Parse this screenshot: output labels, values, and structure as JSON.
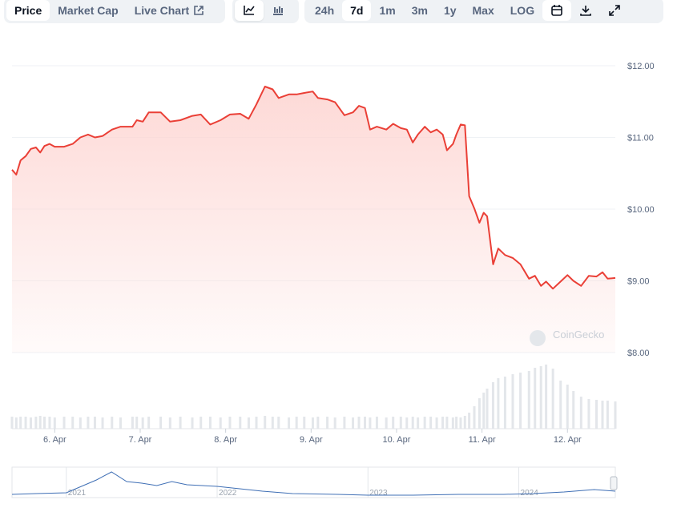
{
  "toolbar": {
    "tabs": [
      "Price",
      "Market Cap",
      "Live Chart"
    ],
    "ranges": [
      "24h",
      "7d",
      "1m",
      "3m",
      "1y",
      "Max",
      "LOG"
    ]
  },
  "watermark": "CoinGecko",
  "chart_data": [
    {
      "type": "line",
      "color": "#ea3f36",
      "fill": "#fdd5d2",
      "grid": true,
      "x": [
        5.5,
        5.55,
        5.6,
        5.66,
        5.72,
        5.78,
        5.83,
        5.88,
        5.94,
        6.0,
        6.11,
        6.21,
        6.3,
        6.39,
        6.47,
        6.56,
        6.67,
        6.77,
        6.91,
        6.96,
        7.03,
        7.1,
        7.24,
        7.35,
        7.47,
        7.61,
        7.71,
        7.82,
        7.94,
        8.05,
        8.17,
        8.27,
        8.36,
        8.46,
        8.55,
        8.62,
        8.74,
        8.83,
        8.92,
        9.02,
        9.08,
        9.19,
        9.28,
        9.39,
        9.49,
        9.56,
        9.63,
        9.69,
        9.77,
        9.88,
        9.96,
        10.05,
        10.12,
        10.19,
        10.25,
        10.33,
        10.4,
        10.47,
        10.54,
        10.59,
        10.66,
        10.7,
        10.75,
        10.8,
        10.85,
        10.91,
        10.97,
        11.02,
        11.06,
        11.13,
        11.19,
        11.27,
        11.36,
        11.45,
        11.55,
        11.62,
        11.69,
        11.75,
        11.83,
        11.92,
        12.0,
        12.07,
        12.16,
        12.25,
        12.34,
        12.41,
        12.47,
        12.56
      ],
      "values": [
        10.55,
        10.48,
        10.68,
        10.74,
        10.84,
        10.86,
        10.79,
        10.88,
        10.91,
        10.87,
        10.87,
        10.91,
        11.0,
        11.04,
        11.0,
        11.02,
        11.11,
        11.15,
        11.15,
        11.24,
        11.22,
        11.35,
        11.35,
        11.22,
        11.24,
        11.3,
        11.32,
        11.18,
        11.24,
        11.32,
        11.33,
        11.26,
        11.46,
        11.71,
        11.67,
        11.55,
        11.6,
        11.6,
        11.62,
        11.64,
        11.55,
        11.53,
        11.49,
        11.31,
        11.35,
        11.44,
        11.41,
        11.11,
        11.15,
        11.11,
        11.19,
        11.13,
        11.11,
        10.93,
        11.04,
        11.15,
        11.07,
        11.11,
        11.04,
        10.82,
        10.91,
        11.04,
        11.18,
        11.17,
        10.18,
        10.01,
        9.81,
        9.95,
        9.9,
        9.23,
        9.45,
        9.36,
        9.32,
        9.23,
        9.03,
        9.07,
        8.93,
        8.99,
        8.89,
        8.99,
        9.08,
        9.0,
        8.93,
        9.07,
        9.06,
        9.12,
        9.03,
        9.04
      ],
      "volume": [
        15,
        14,
        15,
        15,
        14,
        15,
        16,
        15,
        15,
        14,
        15,
        15,
        14,
        15,
        15,
        14,
        15,
        14,
        15,
        15,
        14,
        15,
        15,
        14,
        15,
        14,
        15,
        15,
        14,
        15,
        15,
        14,
        15,
        16,
        15,
        15,
        14,
        15,
        15,
        14,
        15,
        15,
        14,
        15,
        14,
        15,
        15,
        14,
        15,
        14,
        15,
        15,
        14,
        15,
        14,
        15,
        15,
        14,
        15,
        15,
        14,
        15,
        14,
        16,
        20,
        28,
        38,
        45,
        50,
        58,
        63,
        65,
        68,
        70,
        72,
        76,
        78,
        80,
        75,
        60,
        55,
        47,
        40,
        37,
        36,
        35,
        35,
        34
      ],
      "xlim": [
        5.5,
        12.56
      ],
      "xticks": [
        {
          "value": 6,
          "label": "6. Apr"
        },
        {
          "value": 7,
          "label": "7. Apr"
        },
        {
          "value": 8,
          "label": "8. Apr"
        },
        {
          "value": 9,
          "label": "9. Apr"
        },
        {
          "value": 10,
          "label": "10. Apr"
        },
        {
          "value": 11,
          "label": "11. Apr"
        },
        {
          "value": 12,
          "label": "12. Apr"
        }
      ],
      "ylim": [
        8,
        12
      ],
      "yticks": [
        {
          "value": 12,
          "label": "$12.00"
        },
        {
          "value": 11,
          "label": "$11.00"
        },
        {
          "value": 10,
          "label": "$10.00"
        },
        {
          "value": 9,
          "label": "$9.00"
        },
        {
          "value": 8,
          "label": "$8.00"
        }
      ]
    },
    {
      "type": "navigator",
      "color": "#3f6fb5",
      "x": [
        2020.64,
        2020.8,
        2021.0,
        2021.1,
        2021.2,
        2021.3,
        2021.4,
        2021.5,
        2021.6,
        2021.7,
        2021.8,
        2022.0,
        2022.1,
        2022.3,
        2022.5,
        2022.8,
        2023.0,
        2023.3,
        2023.6,
        2023.9,
        2024.1,
        2024.3,
        2024.5,
        2024.64
      ],
      "values": [
        4,
        5,
        6,
        14,
        22,
        32,
        20,
        18,
        15,
        20,
        16,
        14,
        12,
        8,
        5,
        4,
        3,
        3,
        4,
        4,
        5,
        7,
        10,
        8
      ],
      "xlim": [
        2020.64,
        2024.64
      ],
      "xticks": [
        2021,
        2022,
        2023,
        2024
      ]
    }
  ]
}
